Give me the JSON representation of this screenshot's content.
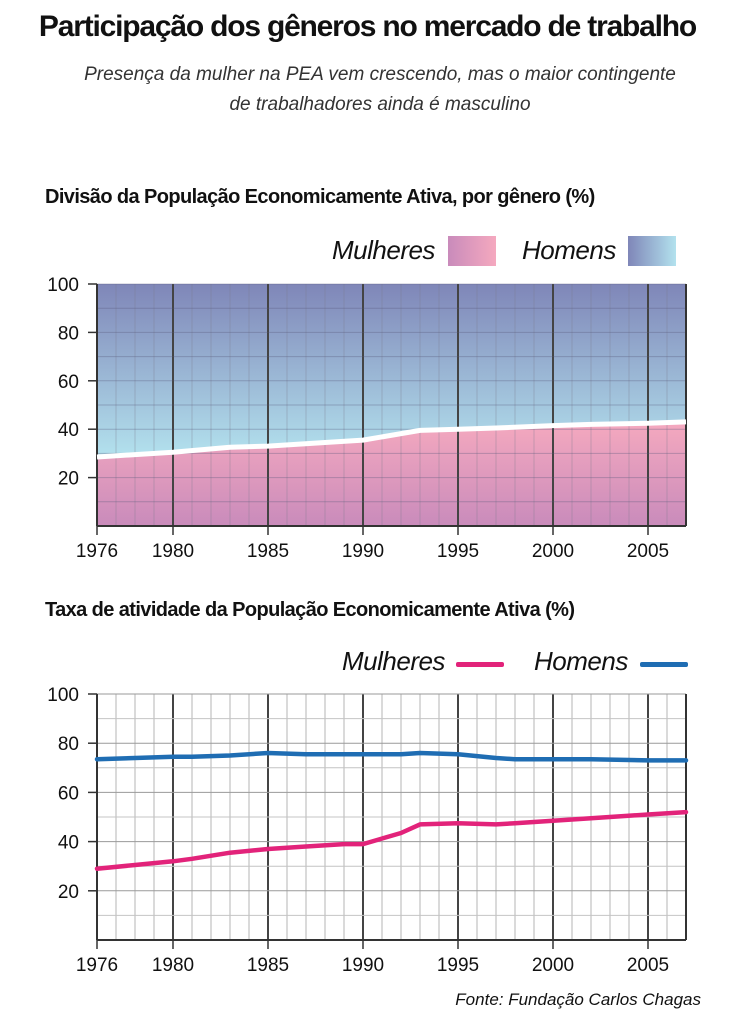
{
  "header": {
    "title": "Participação dos gêneros no mercado de trabalho",
    "subtitle_line1": "Presença da mulher na PEA vem crescendo, mas o maior contingente",
    "subtitle_line2": "de trabalhadores ainda  é masculino"
  },
  "source": "Fonte: Fundação Carlos Chagas",
  "colors": {
    "women_area_top": "#f5a9bf",
    "women_area_bottom": "#c98bbb",
    "men_area_top": "#7f86b8",
    "men_area_bottom": "#b3e2ee",
    "women_line": "#e2237a",
    "men_line": "#1f6db3"
  },
  "chart_data": [
    {
      "type": "area",
      "title": "Divisão da População Economicamente Ativa, por gênero (%)",
      "x": [
        1976,
        1980,
        1983,
        1985,
        1988,
        1990,
        1993,
        1995,
        1997,
        2000,
        2002,
        2005,
        2007
      ],
      "series": [
        {
          "name": "Mulheres",
          "values": [
            28.5,
            30.5,
            32.5,
            33,
            34.5,
            35.5,
            39.5,
            40,
            40.5,
            41.5,
            42,
            42.5,
            43
          ]
        },
        {
          "name": "Homens",
          "values": [
            71.5,
            69.5,
            67.5,
            67,
            65.5,
            64.5,
            60.5,
            60,
            59.5,
            58.5,
            58,
            57.5,
            57
          ]
        }
      ],
      "x_ticks": [
        "1976",
        "1980",
        "1985",
        "1990",
        "1995",
        "2000",
        "2005"
      ],
      "y_ticks": [
        "20",
        "40",
        "60",
        "80",
        "100"
      ],
      "xlim": [
        1976,
        2007
      ],
      "ylim": [
        0,
        100
      ],
      "stacked": true,
      "grid": true,
      "legend_position": "top-right"
    },
    {
      "type": "line",
      "title": "Taxa de atividade da População Economicamente Ativa (%)",
      "x": [
        1976,
        1978,
        1980,
        1981,
        1983,
        1985,
        1987,
        1989,
        1990,
        1992,
        1993,
        1995,
        1997,
        1998,
        2000,
        2002,
        2005,
        2007
      ],
      "series": [
        {
          "name": "Mulheres",
          "values": [
            29,
            30.5,
            32,
            33,
            35.5,
            37,
            38,
            39,
            39,
            43.5,
            47,
            47.5,
            47,
            47.5,
            48.5,
            49.5,
            51,
            52
          ]
        },
        {
          "name": "Homens",
          "values": [
            73.5,
            74,
            74.5,
            74.5,
            75,
            76,
            75.5,
            75.5,
            75.5,
            75.5,
            76,
            75.5,
            74,
            73.5,
            73.5,
            73.5,
            73,
            73
          ]
        }
      ],
      "x_ticks": [
        "1976",
        "1980",
        "1985",
        "1990",
        "1995",
        "2000",
        "2005"
      ],
      "y_ticks": [
        "20",
        "40",
        "60",
        "80",
        "100"
      ],
      "xlim": [
        1976,
        2007
      ],
      "ylim": [
        0,
        100
      ],
      "grid": true,
      "legend_position": "top-right"
    }
  ]
}
